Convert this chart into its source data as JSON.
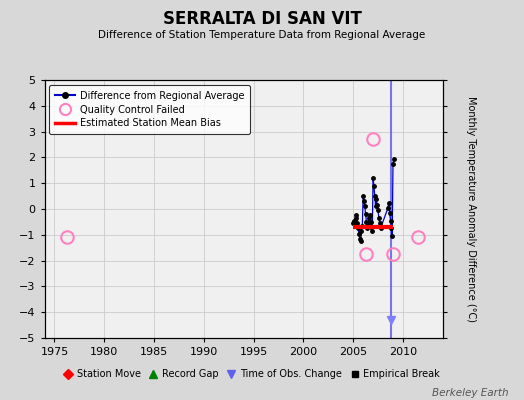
{
  "title": "SERRALTA DI SAN VIT",
  "subtitle": "Difference of Station Temperature Data from Regional Average",
  "ylabel_right": "Monthly Temperature Anomaly Difference (°C)",
  "xlim": [
    1974.0,
    2014.0
  ],
  "ylim": [
    -5,
    5
  ],
  "yticks": [
    -5,
    -4,
    -3,
    -2,
    -1,
    0,
    1,
    2,
    3,
    4,
    5
  ],
  "xticks": [
    1975,
    1980,
    1985,
    1990,
    1995,
    2000,
    2005,
    2010
  ],
  "watermark": "Berkeley Earth",
  "bg_color": "#d8d8d8",
  "plot_bg_color": "#f0f0f0",
  "main_line_color": "#0000cc",
  "qc_circle_color": "#ff80c0",
  "bias_line_color": "#ff0000",
  "vertical_line_color": "#6060ee",
  "series_x": [
    2005.0,
    2005.08,
    2005.17,
    2005.25,
    2005.33,
    2005.42,
    2005.5,
    2005.58,
    2005.67,
    2005.75,
    2005.83,
    2005.92,
    2006.0,
    2006.08,
    2006.17,
    2006.25,
    2006.33,
    2006.42,
    2006.5,
    2006.58,
    2006.67,
    2006.75,
    2006.83,
    2006.92,
    2007.0,
    2007.08,
    2007.17,
    2007.25,
    2007.33,
    2007.42,
    2007.5,
    2007.58,
    2007.67,
    2007.75,
    2008.5,
    2008.58,
    2008.67,
    2008.75,
    2008.83,
    2008.92,
    2009.0,
    2009.08
  ],
  "series_y": [
    -0.55,
    -0.45,
    -0.65,
    -0.35,
    -0.25,
    -0.55,
    -0.75,
    -0.95,
    -1.15,
    -1.25,
    -0.85,
    -0.65,
    0.5,
    0.3,
    0.1,
    -0.2,
    -0.5,
    -0.75,
    -0.55,
    -0.35,
    -0.25,
    -0.5,
    -0.7,
    -0.85,
    1.2,
    0.9,
    0.5,
    0.1,
    0.4,
    0.15,
    -0.05,
    -0.35,
    -0.55,
    -0.75,
    0.05,
    0.25,
    -0.15,
    -0.45,
    -0.75,
    -1.05,
    1.75,
    1.95
  ],
  "qc_failed_x": [
    1976.3,
    2006.33,
    2007.0,
    2009.0,
    2011.5
  ],
  "qc_failed_y": [
    -1.1,
    -1.75,
    2.7,
    -1.75,
    -1.1
  ],
  "bias_x_start": 2005.0,
  "bias_x_end": 2009.0,
  "bias_y": -0.7,
  "vertical_line_x": 2008.75,
  "obs_change_marker_x": 2008.75,
  "obs_change_marker_y": -4.3,
  "obs_change_marker_color": "#8080ff"
}
